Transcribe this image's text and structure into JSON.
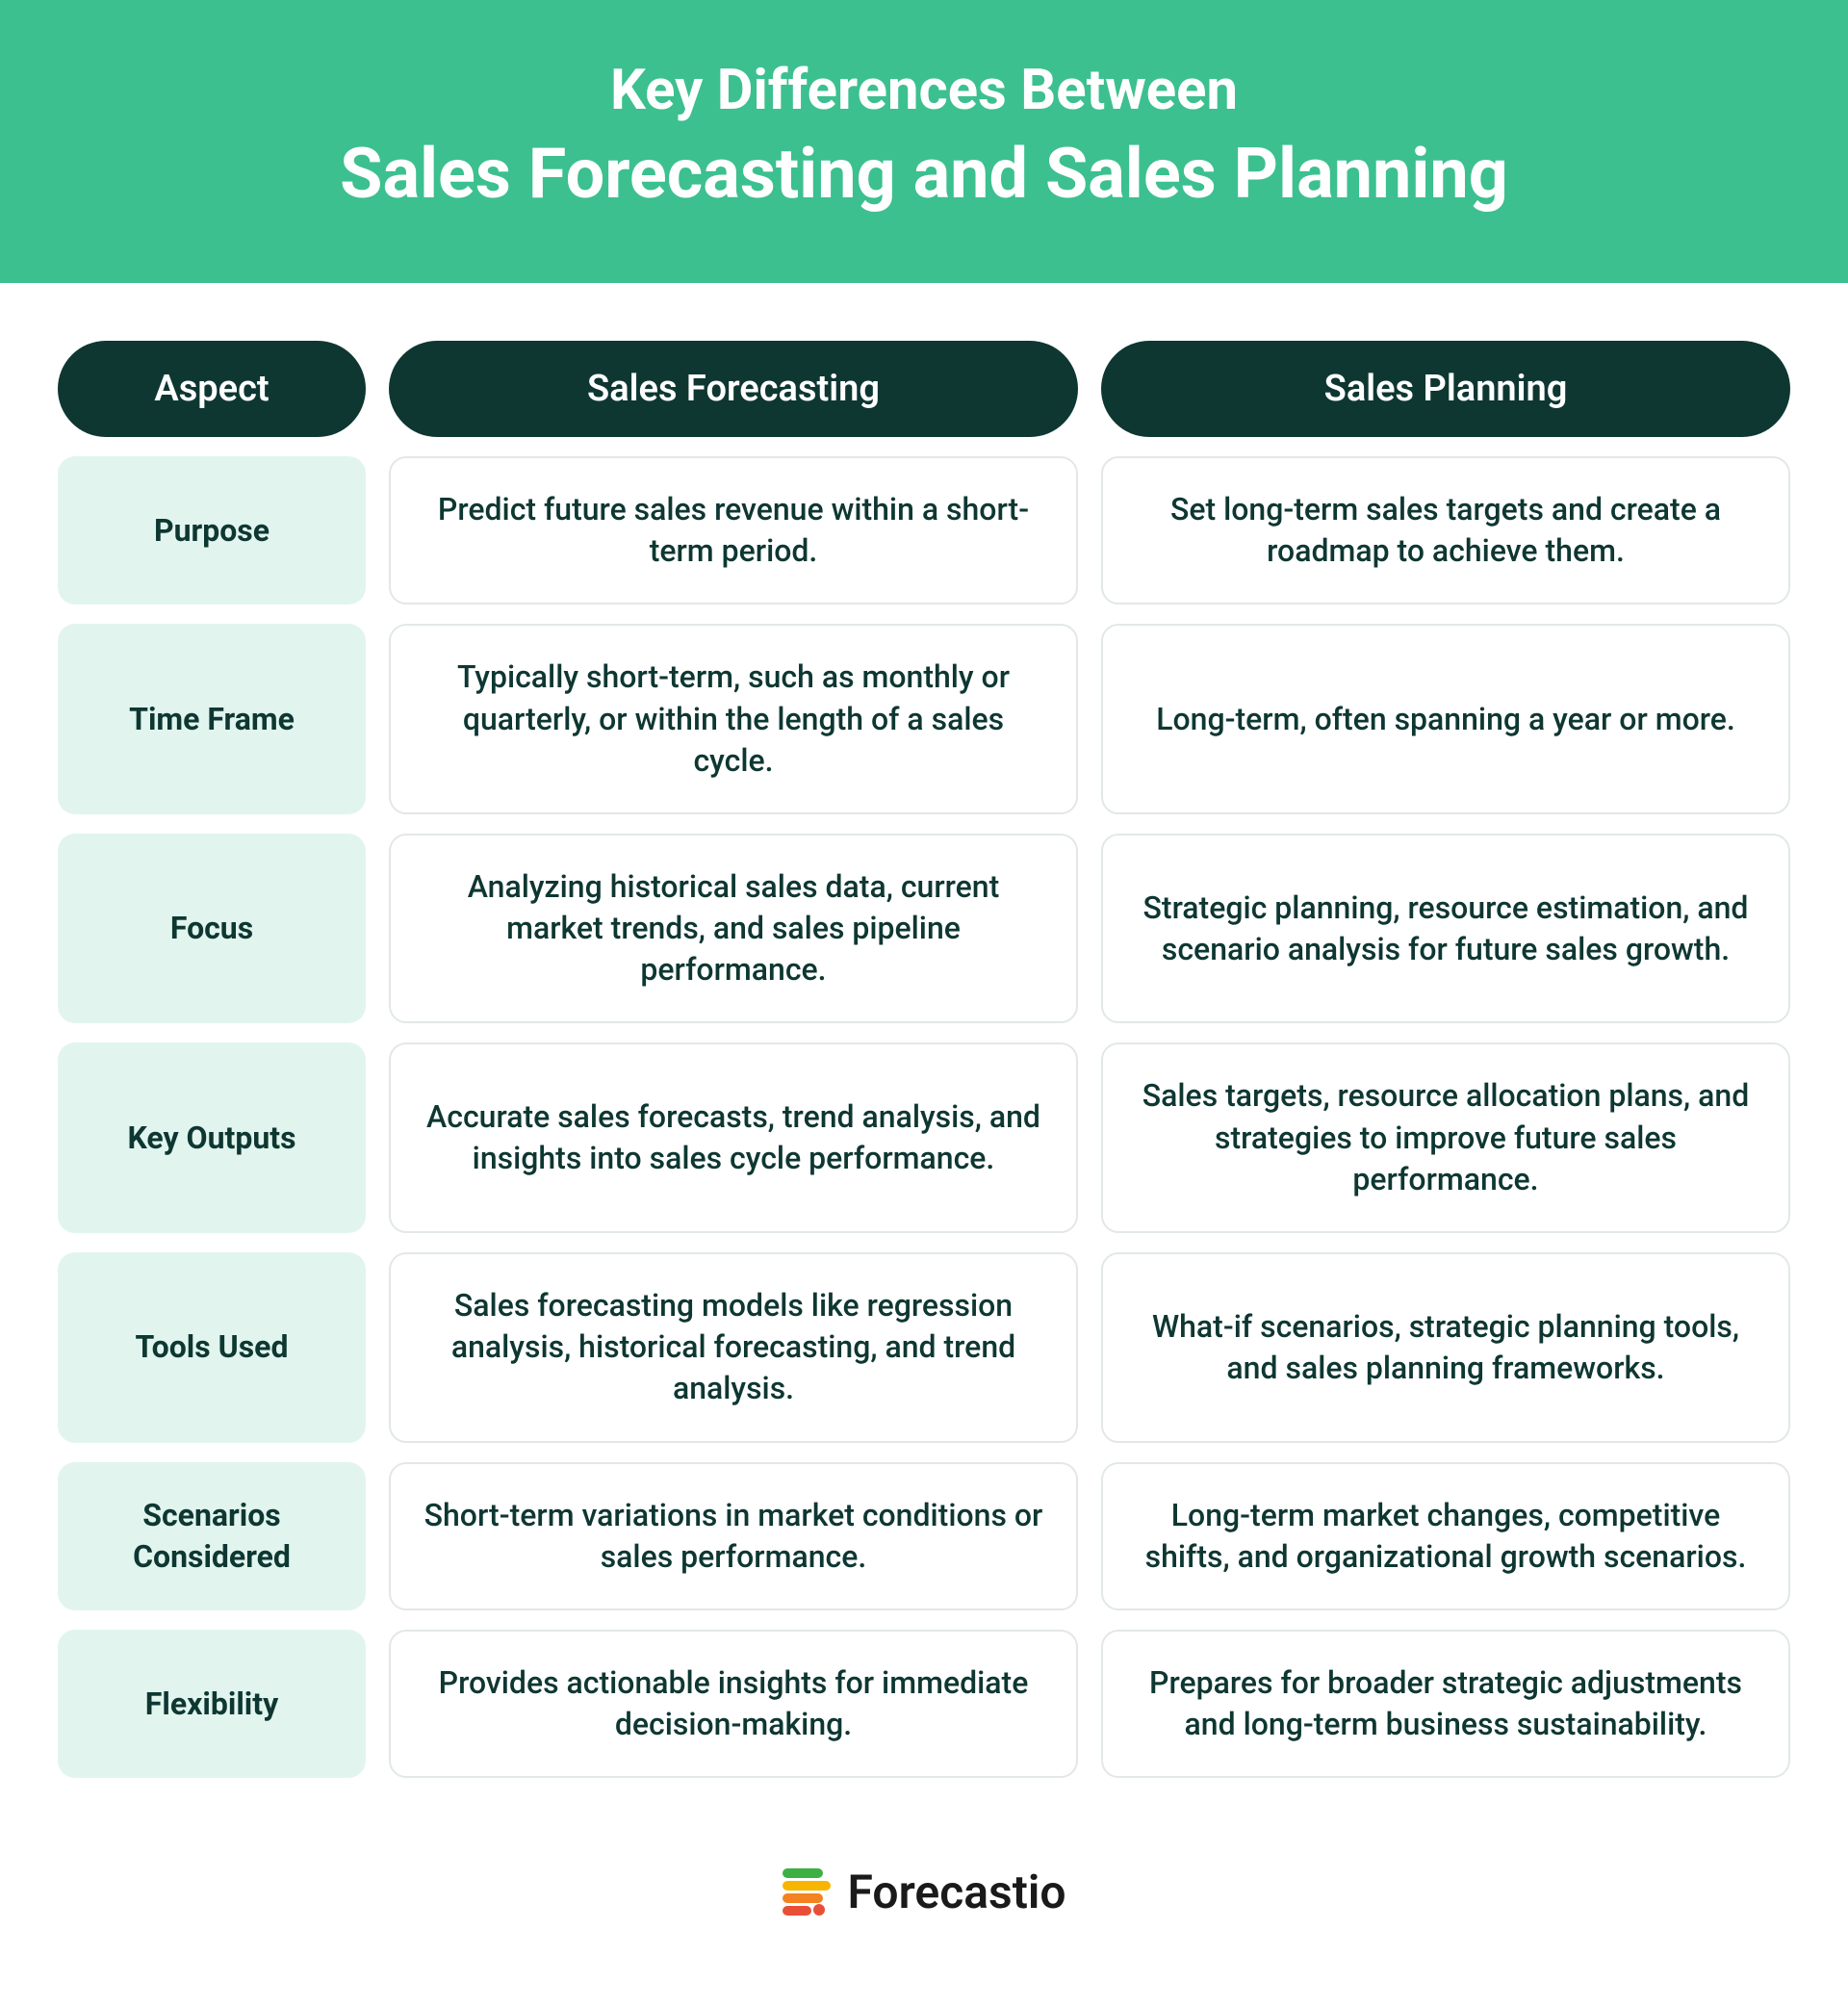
{
  "colors": {
    "header_bg": "#3cc08f",
    "header_text": "#ffffff",
    "th_bg": "#0e3732",
    "th_text": "#ffffff",
    "aspect_bg": "#e1f5ee",
    "body_border": "#e2e8e6",
    "text_dark": "#0e3732",
    "page_bg": "#ffffff",
    "logo_green": "#3cb043",
    "logo_yellow": "#f7b500",
    "logo_orange": "#f58220",
    "logo_red": "#e94f37"
  },
  "typography": {
    "header_line1_size": 58,
    "header_line2_size": 72,
    "th_size": 38,
    "cell_size": 32,
    "logo_size": 48
  },
  "header": {
    "line1": "Key Differences Between",
    "line2": "Sales Forecasting and Sales Planning"
  },
  "table": {
    "columns": [
      "Aspect",
      "Sales Forecasting",
      "Sales Planning"
    ],
    "rows": [
      {
        "aspect": "Purpose",
        "forecasting": "Predict future sales revenue within a short-term period.",
        "planning": "Set long-term sales targets and create a roadmap to achieve them."
      },
      {
        "aspect": "Time Frame",
        "forecasting": "Typically short-term, such as monthly or quarterly, or within the length of a sales cycle.",
        "planning": "Long-term, often spanning a year or more."
      },
      {
        "aspect": "Focus",
        "forecasting": "Analyzing historical sales data, current market trends, and sales pipeline performance.",
        "planning": "Strategic planning, resource estimation, and scenario analysis for future sales growth."
      },
      {
        "aspect": "Key Outputs",
        "forecasting": "Accurate sales forecasts, trend analysis, and insights into sales cycle performance.",
        "planning": "Sales targets, resource allocation plans, and strategies to improve future sales performance."
      },
      {
        "aspect": "Tools Used",
        "forecasting": "Sales forecasting models like regression analysis, historical forecasting, and trend analysis.",
        "planning": "What-if scenarios, strategic planning tools, and sales planning frameworks."
      },
      {
        "aspect": "Scenarios Considered",
        "forecasting": "Short-term variations in market conditions or sales performance.",
        "planning": "Long-term market changes, competitive shifts, and organizational growth scenarios."
      },
      {
        "aspect": "Flexibility",
        "forecasting": "Provides actionable insights for immediate decision-making.",
        "planning": "Prepares for broader strategic adjustments and long-term business sustainability."
      }
    ]
  },
  "footer": {
    "brand": "Forecastio"
  }
}
